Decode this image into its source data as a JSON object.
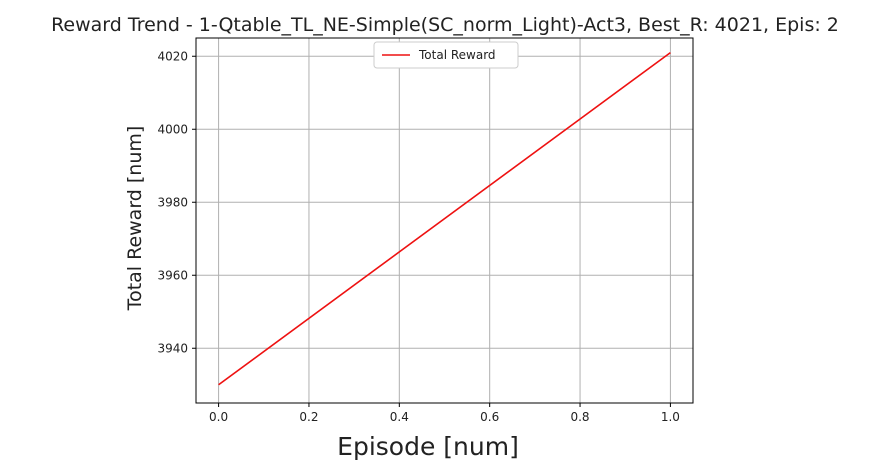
{
  "chart_data": {
    "type": "line",
    "title": "Reward Trend - 1-Qtable_TL_NE-Simple(SC_norm_Light)-Act3, Best_R: 4021, Epis: 2",
    "xlabel": "Episode [num]",
    "ylabel": "Total Reward [num]",
    "xlim": [
      -0.05,
      1.05
    ],
    "ylim": [
      3925,
      4025
    ],
    "xticks": [
      0.0,
      0.2,
      0.4,
      0.6,
      0.8,
      1.0
    ],
    "xtick_labels": [
      "0.0",
      "0.2",
      "0.4",
      "0.6",
      "0.8",
      "1.0"
    ],
    "yticks": [
      3940,
      3960,
      3980,
      4000,
      4020
    ],
    "ytick_labels": [
      "3940",
      "3960",
      "3980",
      "4000",
      "4020"
    ],
    "grid": true,
    "legend_position": "top-center",
    "series": [
      {
        "name": "Total Reward",
        "color": "#ee1111",
        "x": [
          0,
          1
        ],
        "y": [
          3930,
          4021
        ]
      }
    ]
  }
}
